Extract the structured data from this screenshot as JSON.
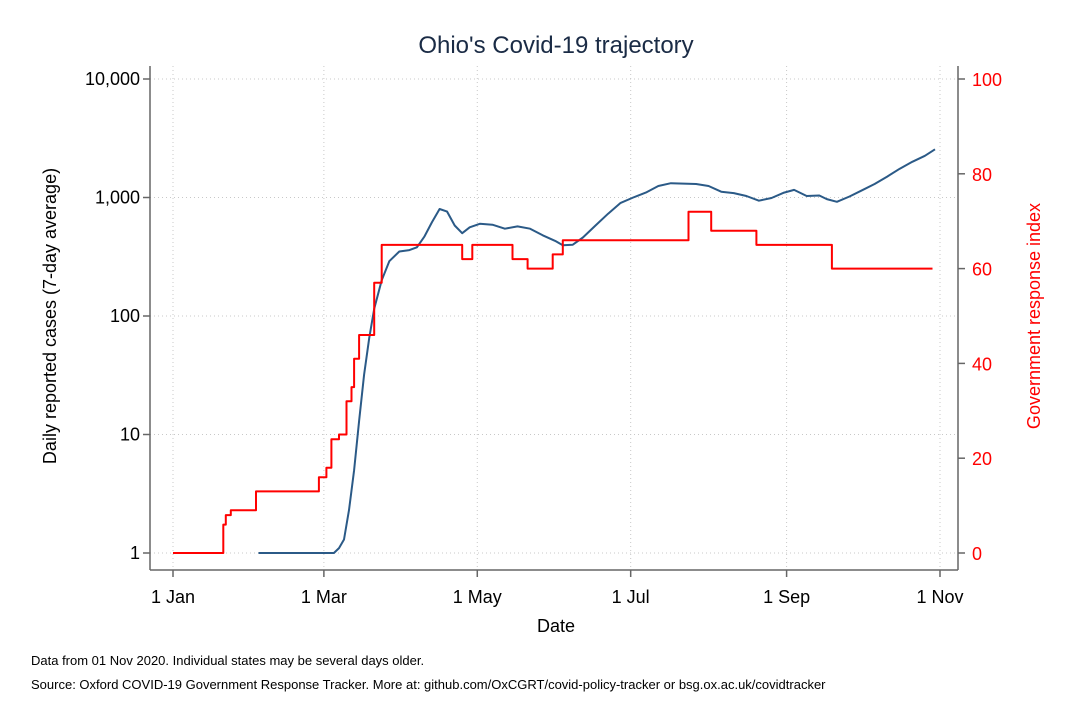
{
  "chart_data": {
    "type": "line",
    "title": "Ohio's Covid-19 trajectory",
    "xlabel": "Date",
    "ylabel": "Daily reported cases (7-day average)",
    "y2label": "Government response index",
    "x_ticks": [
      "1 Jan",
      "1 Mar",
      "1 May",
      "1 Jul",
      "1 Sep",
      "1 Nov"
    ],
    "y_ticks": [
      "1",
      "10",
      "100",
      "1,000",
      "10,000"
    ],
    "y_tick_values": [
      1,
      10,
      100,
      1000,
      10000
    ],
    "y_scale": "log",
    "y2_ticks": [
      "0",
      "20",
      "40",
      "60",
      "80",
      "100"
    ],
    "y2_tick_values": [
      0,
      20,
      40,
      60,
      80,
      100
    ],
    "ylim": [
      1,
      10000
    ],
    "y2lim": [
      0,
      100
    ],
    "grid": true,
    "x_range": [
      "2020-01-01",
      "2020-11-01"
    ],
    "series": [
      {
        "axis": "left",
        "color": "#2b5a87",
        "points": [
          [
            "2020-02-04",
            1
          ],
          [
            "2020-03-05",
            1
          ],
          [
            "2020-03-07",
            1.1
          ],
          [
            "2020-03-09",
            1.3
          ],
          [
            "2020-03-11",
            2.3
          ],
          [
            "2020-03-13",
            5
          ],
          [
            "2020-03-15",
            13
          ],
          [
            "2020-03-17",
            32
          ],
          [
            "2020-03-19",
            65
          ],
          [
            "2020-03-21",
            115
          ],
          [
            "2020-03-24",
            200
          ],
          [
            "2020-03-27",
            290
          ],
          [
            "2020-03-31",
            350
          ],
          [
            "2020-04-04",
            360
          ],
          [
            "2020-04-07",
            380
          ],
          [
            "2020-04-10",
            470
          ],
          [
            "2020-04-13",
            620
          ],
          [
            "2020-04-16",
            800
          ],
          [
            "2020-04-19",
            760
          ],
          [
            "2020-04-22",
            580
          ],
          [
            "2020-04-25",
            500
          ],
          [
            "2020-04-28",
            560
          ],
          [
            "2020-05-02",
            600
          ],
          [
            "2020-05-07",
            590
          ],
          [
            "2020-05-12",
            545
          ],
          [
            "2020-05-17",
            570
          ],
          [
            "2020-05-22",
            545
          ],
          [
            "2020-05-27",
            480
          ],
          [
            "2020-06-01",
            430
          ],
          [
            "2020-06-04",
            395
          ],
          [
            "2020-06-08",
            400
          ],
          [
            "2020-06-12",
            460
          ],
          [
            "2020-06-17",
            580
          ],
          [
            "2020-06-22",
            730
          ],
          [
            "2020-06-27",
            900
          ],
          [
            "2020-07-02",
            1000
          ],
          [
            "2020-07-07",
            1100
          ],
          [
            "2020-07-12",
            1250
          ],
          [
            "2020-07-17",
            1320
          ],
          [
            "2020-07-22",
            1310
          ],
          [
            "2020-07-27",
            1300
          ],
          [
            "2020-08-01",
            1250
          ],
          [
            "2020-08-06",
            1120
          ],
          [
            "2020-08-11",
            1090
          ],
          [
            "2020-08-16",
            1030
          ],
          [
            "2020-08-21",
            940
          ],
          [
            "2020-08-26",
            990
          ],
          [
            "2020-08-31",
            1100
          ],
          [
            "2020-09-04",
            1160
          ],
          [
            "2020-09-09",
            1030
          ],
          [
            "2020-09-14",
            1040
          ],
          [
            "2020-09-17",
            970
          ],
          [
            "2020-09-21",
            920
          ],
          [
            "2020-09-26",
            1020
          ],
          [
            "2020-10-01",
            1150
          ],
          [
            "2020-10-06",
            1300
          ],
          [
            "2020-10-11",
            1500
          ],
          [
            "2020-10-16",
            1750
          ],
          [
            "2020-10-21",
            2000
          ],
          [
            "2020-10-26",
            2250
          ],
          [
            "2020-10-30",
            2550
          ]
        ]
      },
      {
        "axis": "right",
        "color": "#ff0000",
        "step": true,
        "points": [
          [
            "2020-01-01",
            0
          ],
          [
            "2020-01-21",
            6
          ],
          [
            "2020-01-22",
            8
          ],
          [
            "2020-01-24",
            9
          ],
          [
            "2020-02-03",
            13
          ],
          [
            "2020-02-28",
            16
          ],
          [
            "2020-03-02",
            18
          ],
          [
            "2020-03-04",
            24
          ],
          [
            "2020-03-07",
            25
          ],
          [
            "2020-03-10",
            32
          ],
          [
            "2020-03-12",
            35
          ],
          [
            "2020-03-13",
            41
          ],
          [
            "2020-03-15",
            46
          ],
          [
            "2020-03-21",
            57
          ],
          [
            "2020-03-24",
            65
          ],
          [
            "2020-04-25",
            62
          ],
          [
            "2020-04-29",
            65
          ],
          [
            "2020-05-15",
            62
          ],
          [
            "2020-05-21",
            60
          ],
          [
            "2020-05-31",
            63
          ],
          [
            "2020-06-04",
            66
          ],
          [
            "2020-07-24",
            72
          ],
          [
            "2020-08-02",
            68
          ],
          [
            "2020-08-20",
            65
          ],
          [
            "2020-09-19",
            60
          ],
          [
            "2020-10-29",
            60
          ]
        ]
      }
    ]
  },
  "notes": {
    "line1": "Data from 01 Nov 2020. Individual states may be several days older.",
    "line2": "Source: Oxford COVID-19 Government Response Tracker. More at: github.com/OxCGRT/covid-policy-tracker or bsg.ox.ac.uk/covidtracker"
  }
}
